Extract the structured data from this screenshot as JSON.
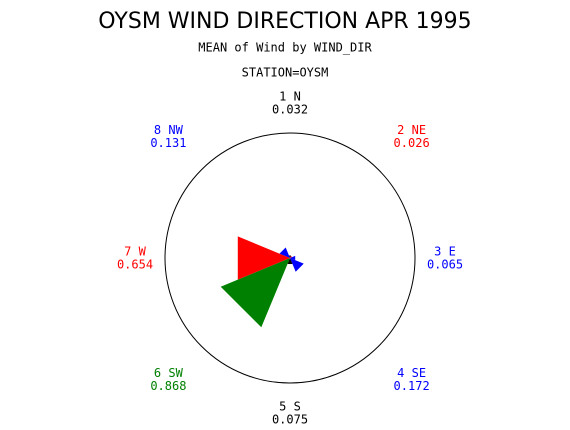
{
  "chart_data": {
    "type": "star",
    "title": "OYSM WIND DIRECTION APR 1995",
    "subtitle": "MEAN of Wind by WIND_DIR",
    "group_label": "STATION=OYSM",
    "categories": [
      "1 N",
      "2 NE",
      "3 E",
      "4 SE",
      "5 S",
      "6 SW",
      "7 W",
      "8 NW"
    ],
    "values": [
      0.032,
      0.026,
      0.065,
      0.172,
      0.075,
      0.868,
      0.654,
      0.131
    ],
    "colors": [
      "#000000",
      "#ff0000",
      "#0000ff",
      "#0000ff",
      "#000000",
      "#008000",
      "#ff0000",
      "#0000ff"
    ]
  }
}
